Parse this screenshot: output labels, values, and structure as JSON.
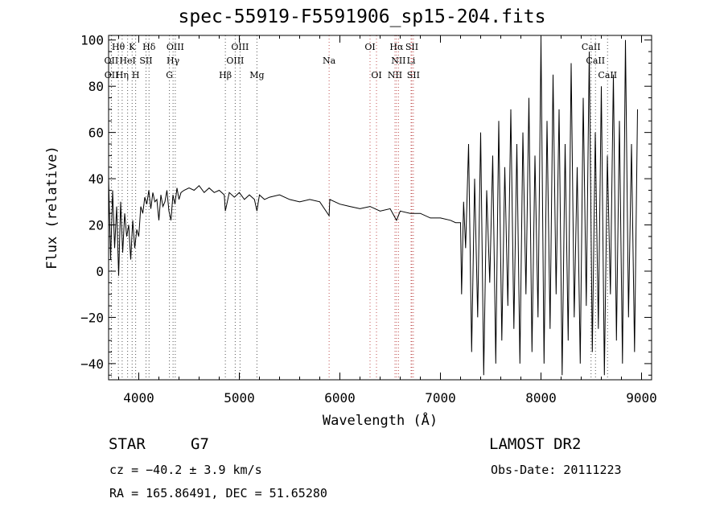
{
  "chart_data": {
    "type": "line",
    "title": "spec-55919-F5591906_sp15-204.fits",
    "xlabel": "Wavelength (Å)",
    "ylabel": "Flux (relative)",
    "xlim": [
      3700,
      9100
    ],
    "ylim": [
      -47,
      102
    ],
    "xticks": [
      4000,
      5000,
      6000,
      7000,
      8000,
      9000
    ],
    "yticks": [
      -40,
      -20,
      0,
      20,
      40,
      60,
      80,
      100
    ],
    "grid": false,
    "series": [
      {
        "color": "#000000",
        "x": [
          3700,
          3720,
          3740,
          3760,
          3780,
          3800,
          3820,
          3840,
          3860,
          3880,
          3900,
          3920,
          3940,
          3960,
          3980,
          4000,
          4020,
          4040,
          4060,
          4080,
          4100,
          4120,
          4140,
          4160,
          4180,
          4200,
          4220,
          4240,
          4260,
          4280,
          4300,
          4320,
          4340,
          4360,
          4380,
          4400,
          4420,
          4450,
          4500,
          4550,
          4600,
          4650,
          4700,
          4750,
          4800,
          4850,
          4861,
          4900,
          4950,
          5000,
          5050,
          5100,
          5150,
          5175,
          5200,
          5250,
          5300,
          5400,
          5500,
          5600,
          5700,
          5800,
          5893,
          5900,
          6000,
          6100,
          6200,
          6300,
          6400,
          6500,
          6563,
          6600,
          6700,
          6800,
          6900,
          7000,
          7100,
          7150,
          7200,
          7210,
          7230,
          7250,
          7280,
          7310,
          7340,
          7370,
          7400,
          7430,
          7460,
          7490,
          7520,
          7550,
          7580,
          7610,
          7640,
          7670,
          7700,
          7730,
          7760,
          7790,
          7820,
          7850,
          7880,
          7910,
          7940,
          7970,
          8000,
          8030,
          8060,
          8090,
          8120,
          8150,
          8180,
          8210,
          8240,
          8270,
          8300,
          8330,
          8360,
          8390,
          8420,
          8450,
          8480,
          8510,
          8540,
          8570,
          8600,
          8630,
          8660,
          8690,
          8720,
          8750,
          8780,
          8810,
          8840,
          8870,
          8900,
          8930,
          8960
        ],
        "y": [
          40,
          5,
          35,
          10,
          28,
          -2,
          30,
          8,
          25,
          15,
          20,
          5,
          22,
          10,
          18,
          15,
          28,
          25,
          32,
          29,
          35,
          27,
          34,
          30,
          31,
          22,
          33,
          28,
          30,
          35,
          26,
          22,
          33,
          29,
          36,
          31,
          34,
          35,
          36,
          35,
          37,
          34,
          36,
          34,
          35,
          33,
          26,
          34,
          32,
          34,
          31,
          33,
          31,
          26,
          33,
          31,
          32,
          33,
          31,
          30,
          31,
          30,
          24,
          31,
          29,
          28,
          27,
          28,
          26,
          27,
          22,
          26,
          25,
          25,
          23,
          23,
          22,
          21,
          21,
          -10,
          30,
          10,
          55,
          -35,
          40,
          -20,
          60,
          -45,
          35,
          -5,
          50,
          -40,
          65,
          -30,
          45,
          -15,
          70,
          -25,
          55,
          -40,
          60,
          -10,
          75,
          -35,
          50,
          -20,
          100,
          -40,
          65,
          -25,
          85,
          -10,
          70,
          -45,
          55,
          -30,
          90,
          -20,
          45,
          -40,
          75,
          -15,
          95,
          -35,
          60,
          -25,
          80,
          -45,
          50,
          -10,
          85,
          -30,
          65,
          -40,
          100,
          -20,
          55,
          -35,
          70
        ]
      }
    ],
    "annotations": [
      {
        "label": "Hθ",
        "x": 3797,
        "row": 1,
        "color": "#000000"
      },
      {
        "label": "OII",
        "x": 3727,
        "row": 2,
        "color": "#000000"
      },
      {
        "label": "OII",
        "x": 3729,
        "row": 3,
        "color": "#000000"
      },
      {
        "label": "Hη",
        "x": 3835,
        "row": 3,
        "color": "#000000"
      },
      {
        "label": "K",
        "x": 3934,
        "row": 1,
        "color": "#000000"
      },
      {
        "label": "HeI",
        "x": 3889,
        "row": 2,
        "color": "#000000"
      },
      {
        "label": "SII",
        "x": 4072,
        "row": 2,
        "color": "#000000"
      },
      {
        "label": "H",
        "x": 3969,
        "row": 3,
        "color": "#000000"
      },
      {
        "label": "Hδ",
        "x": 4102,
        "row": 1,
        "color": "#000000"
      },
      {
        "label": "OIII",
        "x": 4363,
        "row": 1,
        "color": "#000000"
      },
      {
        "label": "Hγ",
        "x": 4341,
        "row": 2,
        "color": "#000000"
      },
      {
        "label": "G",
        "x": 4305,
        "row": 3,
        "color": "#000000"
      },
      {
        "label": "OIII",
        "x": 5007,
        "row": 1,
        "color": "#000000"
      },
      {
        "label": "OIII",
        "x": 4959,
        "row": 2,
        "color": "#000000"
      },
      {
        "label": "Hβ",
        "x": 4861,
        "row": 3,
        "color": "#000000"
      },
      {
        "label": "Mg",
        "x": 5175,
        "row": 3,
        "color": "#000000"
      },
      {
        "label": "Na",
        "x": 5893,
        "row": 2,
        "color": "#000000"
      },
      {
        "label": "OI",
        "x": 6300,
        "row": 1,
        "color": "#000000"
      },
      {
        "label": "OI",
        "x": 6364,
        "row": 3,
        "color": "#000000"
      },
      {
        "label": "Hα",
        "x": 6563,
        "row": 1,
        "color": "#000000"
      },
      {
        "label": "SII",
        "x": 6716,
        "row": 1,
        "color": "#000000"
      },
      {
        "label": "NII",
        "x": 6583,
        "row": 2,
        "color": "#000000"
      },
      {
        "label": "Li",
        "x": 6708,
        "row": 2,
        "color": "#000000"
      },
      {
        "label": "NII",
        "x": 6548,
        "row": 3,
        "color": "#000000"
      },
      {
        "label": "SII",
        "x": 6731,
        "row": 3,
        "color": "#000000"
      },
      {
        "label": "CaII",
        "x": 8498,
        "row": 1,
        "color": "#000000"
      },
      {
        "label": "CaII",
        "x": 8542,
        "row": 2,
        "color": "#000000"
      },
      {
        "label": "CaII",
        "x": 8662,
        "row": 3,
        "color": "#000000"
      }
    ],
    "line_markers": [
      {
        "x": 3727,
        "color": "#555555"
      },
      {
        "x": 3729,
        "color": "#555555"
      },
      {
        "x": 3797,
        "color": "#555555"
      },
      {
        "x": 3835,
        "color": "#555555"
      },
      {
        "x": 3889,
        "color": "#555555"
      },
      {
        "x": 3934,
        "color": "#555555"
      },
      {
        "x": 3969,
        "color": "#555555"
      },
      {
        "x": 4072,
        "color": "#555555"
      },
      {
        "x": 4102,
        "color": "#555555"
      },
      {
        "x": 4305,
        "color": "#555555"
      },
      {
        "x": 4341,
        "color": "#555555"
      },
      {
        "x": 4363,
        "color": "#555555"
      },
      {
        "x": 4861,
        "color": "#555555"
      },
      {
        "x": 4959,
        "color": "#555555"
      },
      {
        "x": 5007,
        "color": "#555555"
      },
      {
        "x": 5175,
        "color": "#555555"
      },
      {
        "x": 5893,
        "color": "#c05050"
      },
      {
        "x": 6300,
        "color": "#c05050"
      },
      {
        "x": 6364,
        "color": "#c05050"
      },
      {
        "x": 6548,
        "color": "#c05050"
      },
      {
        "x": 6563,
        "color": "#c05050"
      },
      {
        "x": 6583,
        "color": "#c05050"
      },
      {
        "x": 6708,
        "color": "#c05050"
      },
      {
        "x": 6716,
        "color": "#c05050"
      },
      {
        "x": 6731,
        "color": "#c05050"
      },
      {
        "x": 8498,
        "color": "#555555"
      },
      {
        "x": 8542,
        "color": "#555555"
      },
      {
        "x": 8662,
        "color": "#555555"
      }
    ]
  },
  "info": {
    "object_class": "STAR",
    "subclass": "G7",
    "survey": "LAMOST DR2",
    "cz": "cz = −40.2 ± 3.9 km/s",
    "obs_date": "Obs-Date: 20111223",
    "radec": "RA = 165.86491, DEC =  51.65280"
  }
}
